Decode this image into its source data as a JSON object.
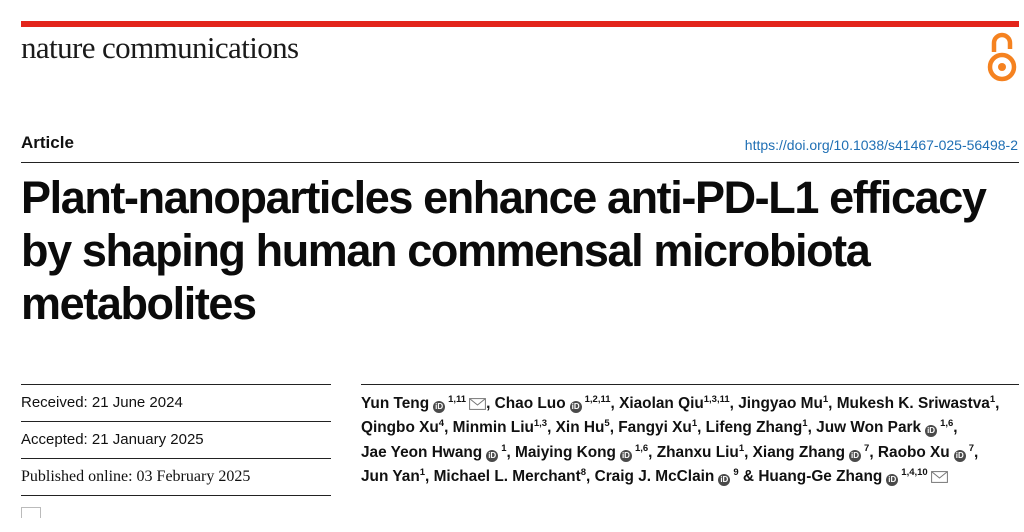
{
  "journal": {
    "name": "nature communications",
    "brand_color": "#e3251b",
    "oa_icon_color": "#f58220"
  },
  "article": {
    "type": "Article",
    "doi": "https://doi.org/10.1038/s41467-025-56498-2",
    "title": "Plant-nanoparticles enhance anti-PD-L1 efficacy by shaping human commensal microbiota metabolites"
  },
  "dates": {
    "received": "Received: 21 June 2024",
    "accepted": "Accepted: 21 January 2025",
    "published": "Published online: 03 February 2025"
  },
  "authors": [
    {
      "name": "Yun Teng",
      "sup": "1,11",
      "orcid": true,
      "email": true,
      "sep": ","
    },
    {
      "name": "Chao Luo",
      "sup": "1,2,11",
      "orcid": true,
      "email": false,
      "sep": ","
    },
    {
      "name": "Xiaolan Qiu",
      "sup": "1,3,11",
      "orcid": false,
      "email": false,
      "sep": ","
    },
    {
      "name": "Jingyao Mu",
      "sup": "1",
      "orcid": false,
      "email": false,
      "sep": ","
    },
    {
      "name": "Mukesh K. Sriwastva",
      "sup": "1",
      "orcid": false,
      "email": false,
      "sep": ","
    },
    {
      "name": "Qingbo Xu",
      "sup": "4",
      "orcid": false,
      "email": false,
      "sep": ","
    },
    {
      "name": "Minmin Liu",
      "sup": "1,3",
      "orcid": false,
      "email": false,
      "sep": ","
    },
    {
      "name": "Xin Hu",
      "sup": "5",
      "orcid": false,
      "email": false,
      "sep": ","
    },
    {
      "name": "Fangyi Xu",
      "sup": "1",
      "orcid": false,
      "email": false,
      "sep": ","
    },
    {
      "name": "Lifeng Zhang",
      "sup": "1",
      "orcid": false,
      "email": false,
      "sep": ","
    },
    {
      "name": "Juw Won Park",
      "sup": "1,6",
      "orcid": true,
      "email": false,
      "sep": ","
    },
    {
      "name": "Jae Yeon Hwang",
      "sup": "1",
      "orcid": true,
      "email": false,
      "sep": ","
    },
    {
      "name": "Maiying Kong",
      "sup": "1,6",
      "orcid": true,
      "email": false,
      "sep": ","
    },
    {
      "name": "Zhanxu Liu",
      "sup": "1",
      "orcid": false,
      "email": false,
      "sep": ","
    },
    {
      "name": "Xiang Zhang",
      "sup": "7",
      "orcid": true,
      "email": false,
      "sep": ","
    },
    {
      "name": "Raobo Xu",
      "sup": "7",
      "orcid": true,
      "email": false,
      "sep": ","
    },
    {
      "name": "Jun Yan",
      "sup": "1",
      "orcid": false,
      "email": false,
      "sep": ","
    },
    {
      "name": "Michael L. Merchant",
      "sup": "8",
      "orcid": false,
      "email": false,
      "sep": ","
    },
    {
      "name": "Craig J. McClain",
      "sup": "9",
      "orcid": true,
      "email": false,
      "sep": " &"
    },
    {
      "name": "Huang-Ge Zhang",
      "sup": "1,4,10",
      "orcid": true,
      "email": true,
      "sep": ""
    }
  ]
}
